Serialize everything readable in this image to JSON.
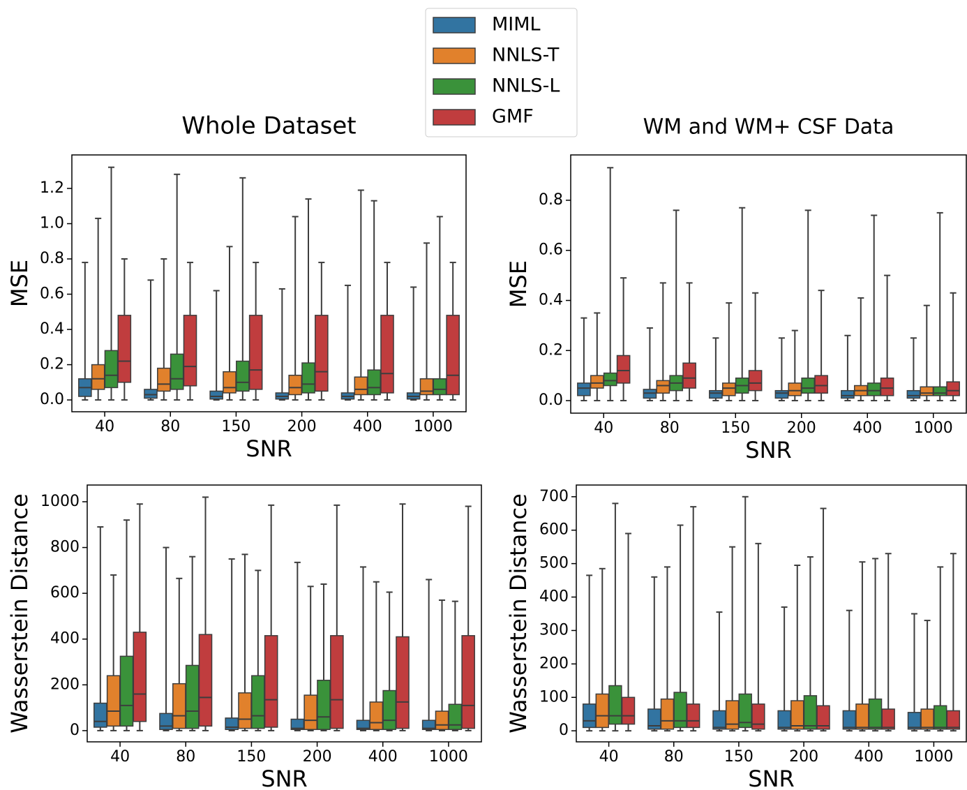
{
  "legend": {
    "entries": [
      {
        "name": "MIML",
        "color": "#3274a1"
      },
      {
        "name": "NNLS-T",
        "color": "#e1812c"
      },
      {
        "name": "NNLS-L",
        "color": "#3a923a"
      },
      {
        "name": "GMF",
        "color": "#c03d3e"
      }
    ]
  },
  "chart_data": [
    {
      "type": "box",
      "title": "Whole Dataset",
      "xlabel": "SNR",
      "ylabel": "MSE",
      "categories": [
        "40",
        "80",
        "150",
        "200",
        "400",
        "1000"
      ],
      "ylim": [
        -0.067,
        1.39
      ],
      "yticks": [
        {
          "value": 0,
          "label": "0.0"
        },
        0.2,
        0.4,
        0.6,
        0.8,
        {
          "value": 1,
          "label": "1.0"
        },
        1.2
      ],
      "series": [
        {
          "values": [
            [
              0,
              0.02,
              0.07,
              0.12,
              0.78
            ],
            [
              0,
              0.01,
              0.03,
              0.06,
              0.68
            ],
            [
              0,
              0.005,
              0.02,
              0.05,
              0.62
            ],
            [
              0,
              0.005,
              0.02,
              0.04,
              0.63
            ],
            [
              0,
              0.005,
              0.02,
              0.04,
              0.65
            ],
            [
              0,
              0.005,
              0.02,
              0.04,
              0.64
            ]
          ]
        },
        {
          "values": [
            [
              0,
              0.06,
              0.12,
              0.2,
              1.03
            ],
            [
              0,
              0.05,
              0.09,
              0.18,
              0.8
            ],
            [
              0,
              0.04,
              0.07,
              0.16,
              0.87
            ],
            [
              0,
              0.03,
              0.07,
              0.14,
              1.04
            ],
            [
              0,
              0.03,
              0.06,
              0.13,
              1.19
            ],
            [
              0,
              0.03,
              0.05,
              0.12,
              0.89
            ]
          ]
        },
        {
          "values": [
            [
              0,
              0.07,
              0.14,
              0.28,
              1.32
            ],
            [
              0,
              0.06,
              0.12,
              0.26,
              1.28
            ],
            [
              0,
              0.05,
              0.1,
              0.22,
              1.26
            ],
            [
              0,
              0.04,
              0.09,
              0.21,
              1.14
            ],
            [
              0,
              0.03,
              0.07,
              0.17,
              1.13
            ],
            [
              0,
              0.03,
              0.06,
              0.12,
              1.04
            ]
          ]
        },
        {
          "values": [
            [
              0,
              0.1,
              0.22,
              0.48,
              0.8
            ],
            [
              0,
              0.08,
              0.19,
              0.48,
              0.78
            ],
            [
              0,
              0.06,
              0.17,
              0.48,
              0.78
            ],
            [
              0,
              0.05,
              0.16,
              0.48,
              0.78
            ],
            [
              0,
              0.04,
              0.15,
              0.48,
              0.78
            ],
            [
              0,
              0.03,
              0.14,
              0.48,
              0.78
            ]
          ]
        }
      ]
    },
    {
      "type": "box",
      "title": "WM and WM+ CSF Data",
      "xlabel": "SNR",
      "ylabel": "MSE",
      "categories": [
        "40",
        "80",
        "150",
        "200",
        "400",
        "1000"
      ],
      "ylim": [
        -0.05,
        0.981
      ],
      "yticks": [
        {
          "value": 0,
          "label": "0.0"
        },
        0.2,
        0.4,
        0.6,
        0.8
      ],
      "series": [
        {
          "values": [
            [
              0,
              0.02,
              0.05,
              0.07,
              0.33
            ],
            [
              0,
              0.01,
              0.03,
              0.045,
              0.29
            ],
            [
              0,
              0.01,
              0.03,
              0.04,
              0.25
            ],
            [
              0,
              0.01,
              0.03,
              0.04,
              0.25
            ],
            [
              0,
              0.01,
              0.02,
              0.04,
              0.26
            ],
            [
              0,
              0.01,
              0.02,
              0.04,
              0.25
            ]
          ]
        },
        {
          "values": [
            [
              0,
              0.05,
              0.07,
              0.1,
              0.35
            ],
            [
              0,
              0.03,
              0.06,
              0.08,
              0.47
            ],
            [
              0,
              0.02,
              0.05,
              0.07,
              0.39
            ],
            [
              0,
              0.02,
              0.04,
              0.07,
              0.28
            ],
            [
              0,
              0.02,
              0.04,
              0.06,
              0.41
            ],
            [
              0,
              0.02,
              0.03,
              0.055,
              0.38
            ]
          ]
        },
        {
          "values": [
            [
              0,
              0.06,
              0.08,
              0.11,
              0.93
            ],
            [
              0,
              0.04,
              0.07,
              0.1,
              0.76
            ],
            [
              0,
              0.03,
              0.06,
              0.09,
              0.77
            ],
            [
              0,
              0.03,
              0.05,
              0.09,
              0.76
            ],
            [
              0,
              0.02,
              0.04,
              0.07,
              0.74
            ],
            [
              0,
              0.02,
              0.03,
              0.055,
              0.75
            ]
          ]
        },
        {
          "values": [
            [
              0,
              0.07,
              0.12,
              0.18,
              0.49
            ],
            [
              0,
              0.05,
              0.09,
              0.15,
              0.47
            ],
            [
              0,
              0.04,
              0.07,
              0.12,
              0.43
            ],
            [
              0,
              0.03,
              0.06,
              0.1,
              0.44
            ],
            [
              0,
              0.02,
              0.05,
              0.09,
              0.5
            ],
            [
              0,
              0.02,
              0.04,
              0.075,
              0.43
            ]
          ]
        }
      ]
    },
    {
      "type": "box",
      "xlabel": "SNR",
      "ylabel": "Wasserstein Distance",
      "categories": [
        "40",
        "80",
        "150",
        "200",
        "400",
        "1000"
      ],
      "ylim": [
        -49,
        1073
      ],
      "yticks": [
        0,
        200,
        400,
        600,
        800,
        1000
      ],
      "series": [
        {
          "values": [
            [
              0,
              15,
              40,
              120,
              890
            ],
            [
              0,
              5,
              20,
              75,
              800
            ],
            [
              0,
              5,
              15,
              55,
              750
            ],
            [
              0,
              5,
              10,
              50,
              735
            ],
            [
              0,
              5,
              10,
              45,
              715
            ],
            [
              0,
              5,
              10,
              45,
              660
            ]
          ]
        },
        {
          "values": [
            [
              0,
              20,
              85,
              240,
              680
            ],
            [
              0,
              10,
              65,
              205,
              665
            ],
            [
              0,
              10,
              50,
              165,
              770
            ],
            [
              0,
              5,
              45,
              155,
              630
            ],
            [
              0,
              5,
              35,
              125,
              650
            ],
            [
              0,
              5,
              25,
              85,
              570
            ]
          ]
        },
        {
          "values": [
            [
              0,
              20,
              110,
              325,
              920
            ],
            [
              0,
              10,
              85,
              285,
              760
            ],
            [
              0,
              10,
              65,
              240,
              700
            ],
            [
              0,
              5,
              60,
              220,
              640
            ],
            [
              0,
              5,
              45,
              175,
              605
            ],
            [
              0,
              5,
              25,
              115,
              565
            ]
          ]
        },
        {
          "values": [
            [
              0,
              40,
              160,
              430,
              990
            ],
            [
              0,
              20,
              145,
              420,
              1020
            ],
            [
              0,
              15,
              135,
              415,
              985
            ],
            [
              0,
              10,
              135,
              415,
              985
            ],
            [
              0,
              10,
              125,
              410,
              990
            ],
            [
              0,
              10,
              110,
              415,
              980
            ]
          ]
        }
      ]
    },
    {
      "type": "box",
      "xlabel": "SNR",
      "ylabel": "Wasserstein Distance",
      "categories": [
        "40",
        "80",
        "150",
        "200",
        "400",
        "1000"
      ],
      "ylim": [
        -33,
        735
      ],
      "yticks": [
        0,
        100,
        200,
        300,
        400,
        500,
        600,
        700
      ],
      "series": [
        {
          "values": [
            [
              0,
              10,
              30,
              80,
              465
            ],
            [
              0,
              5,
              15,
              65,
              460
            ],
            [
              0,
              5,
              10,
              60,
              355
            ],
            [
              0,
              5,
              10,
              60,
              370
            ],
            [
              0,
              5,
              10,
              60,
              360
            ],
            [
              0,
              5,
              10,
              55,
              350
            ]
          ]
        },
        {
          "values": [
            [
              0,
              10,
              45,
              110,
              485
            ],
            [
              0,
              5,
              30,
              95,
              490
            ],
            [
              0,
              5,
              20,
              90,
              550
            ],
            [
              0,
              5,
              15,
              90,
              495
            ],
            [
              0,
              5,
              10,
              80,
              505
            ],
            [
              0,
              5,
              10,
              65,
              330
            ]
          ]
        },
        {
          "values": [
            [
              0,
              20,
              45,
              135,
              680
            ],
            [
              0,
              10,
              30,
              115,
              615
            ],
            [
              0,
              10,
              25,
              110,
              700
            ],
            [
              0,
              5,
              15,
              105,
              520
            ],
            [
              0,
              5,
              10,
              95,
              515
            ],
            [
              0,
              5,
              10,
              75,
              490
            ]
          ]
        },
        {
          "values": [
            [
              0,
              20,
              45,
              100,
              590
            ],
            [
              0,
              10,
              30,
              80,
              670
            ],
            [
              0,
              5,
              20,
              80,
              560
            ],
            [
              0,
              5,
              15,
              75,
              665
            ],
            [
              0,
              5,
              10,
              65,
              530
            ],
            [
              0,
              5,
              10,
              60,
              530
            ]
          ]
        }
      ]
    }
  ]
}
